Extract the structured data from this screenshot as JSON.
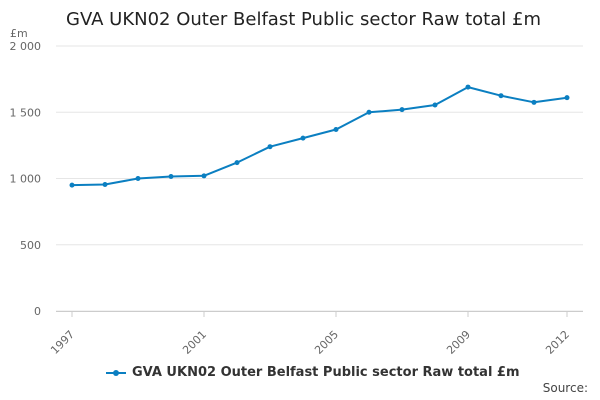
{
  "title": "GVA UKN02 Outer Belfast Public sector Raw total £m",
  "source_label": "Source:",
  "colors": {
    "series": "#0b7fc1",
    "grid": "#e6e6e6",
    "axis_text": "#666666"
  },
  "chart_data": {
    "type": "line",
    "title": "GVA UKN02 Outer Belfast Public sector Raw total £m",
    "ylabel": "£m",
    "ylim": [
      0,
      2000
    ],
    "yticks": [
      0,
      500,
      1000,
      1500,
      2000
    ],
    "ytick_labels": [
      "0",
      "500",
      "1 000",
      "1 500",
      "2 000"
    ],
    "xlim": [
      1997,
      2012
    ],
    "xticks": [
      1997,
      2001,
      2005,
      2009,
      2012
    ],
    "xtick_labels": [
      "1997",
      "2001",
      "2005",
      "2009",
      "2012"
    ],
    "grid": "horizontal",
    "legend_position": "bottom",
    "x": [
      1997,
      1998,
      1999,
      2000,
      2001,
      2002,
      2003,
      2004,
      2005,
      2006,
      2007,
      2008,
      2009,
      2010,
      2011,
      2012
    ],
    "series": [
      {
        "name": "GVA UKN02 Outer Belfast Public sector Raw total £m",
        "values": [
          950,
          955,
          1000,
          1015,
          1020,
          1120,
          1240,
          1305,
          1370,
          1500,
          1520,
          1555,
          1690,
          1625,
          1575,
          1610
        ]
      }
    ]
  }
}
